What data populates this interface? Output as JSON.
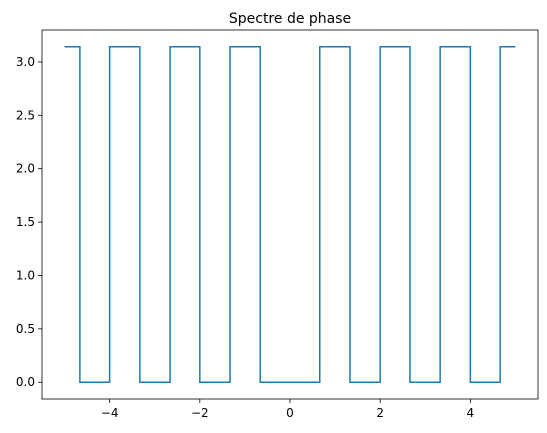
{
  "chart_data": {
    "type": "line",
    "title": "Spectre de phase",
    "xlabel": "",
    "ylabel": "",
    "xlim": [
      -5.5,
      5.5
    ],
    "ylim": [
      -0.157,
      3.299
    ],
    "grid": false,
    "x_ticks": [
      -4,
      -2,
      0,
      2,
      4
    ],
    "x_tick_labels": [
      "−4",
      "−2",
      "0",
      "2",
      "4"
    ],
    "y_ticks": [
      0.0,
      0.5,
      1.0,
      1.5,
      2.0,
      2.5,
      3.0
    ],
    "y_tick_labels": [
      "0.0",
      "0.5",
      "1.0",
      "1.5",
      "2.0",
      "2.5",
      "3.0"
    ],
    "series": [
      {
        "color": "#1f77b4",
        "x": [
          -5.0,
          -4.66,
          -4.66,
          -4.0,
          -4.0,
          -3.33,
          -3.33,
          -2.66,
          -2.66,
          -2.0,
          -2.0,
          -1.33,
          -1.33,
          -0.66,
          -0.66,
          0.66,
          0.66,
          1.33,
          1.33,
          2.0,
          2.0,
          2.66,
          2.66,
          3.33,
          3.33,
          4.0,
          4.0,
          4.66,
          4.66,
          5.0
        ],
        "y": [
          3.1416,
          3.1416,
          0,
          0,
          3.1416,
          3.1416,
          0,
          0,
          3.1416,
          3.1416,
          0,
          0,
          3.1416,
          3.1416,
          0,
          0,
          3.1416,
          3.1416,
          0,
          0,
          3.1416,
          3.1416,
          0,
          0,
          3.1416,
          3.1416,
          0,
          0,
          3.1416,
          3.1416
        ]
      }
    ]
  }
}
